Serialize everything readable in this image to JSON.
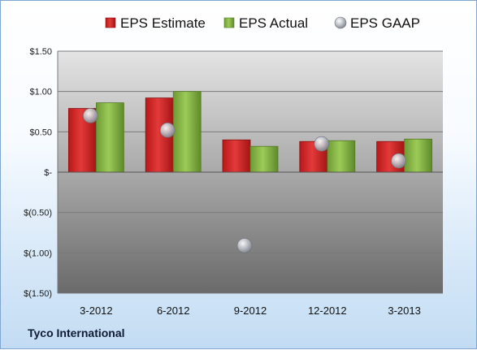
{
  "company": "Tyco International",
  "chart_data": {
    "type": "bar",
    "categories": [
      "3-2012",
      "6-2012",
      "9-2012",
      "12-2012",
      "3-2013"
    ],
    "series": [
      {
        "name": "EPS Estimate",
        "kind": "bar",
        "color": "#d92b2b",
        "values": [
          0.79,
          0.92,
          0.4,
          0.38,
          0.38
        ]
      },
      {
        "name": "EPS Actual",
        "kind": "bar",
        "color": "#8db84a",
        "values": [
          0.86,
          1.0,
          0.32,
          0.39,
          0.41
        ]
      },
      {
        "name": "EPS GAAP",
        "kind": "scatter",
        "color": "#b8bcc4",
        "values": [
          0.7,
          0.52,
          -0.91,
          0.35,
          0.14
        ]
      }
    ],
    "ylim": [
      -1.5,
      1.5
    ],
    "yticks": [
      1.5,
      1.0,
      0.5,
      0,
      -0.5,
      -1.0,
      -1.5
    ],
    "ytick_labels": [
      "$1.50",
      "$1.00",
      "$0.50",
      "$-",
      "$(0.50)",
      "$(1.00)",
      "$(1.50)"
    ],
    "legend_position": "top",
    "grid": true
  }
}
